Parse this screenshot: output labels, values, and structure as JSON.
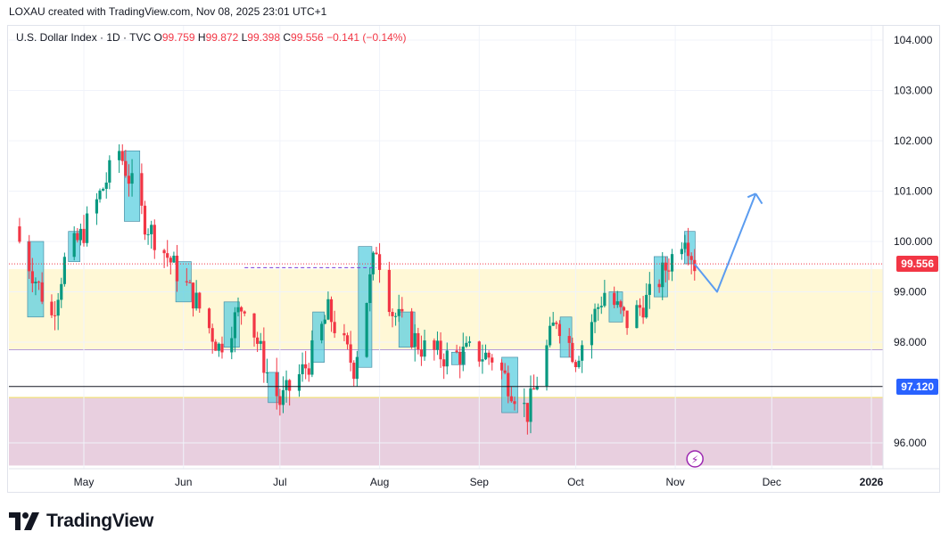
{
  "header": {
    "attribution": "LOXAU created with TradingView.com, Nov 08, 2025 23:01 UTC+1"
  },
  "legend": {
    "symbol": "U.S. Dollar Index · 1D · TVC",
    "o_label": "O",
    "o_value": "99.759",
    "h_label": "H",
    "h_value": "99.872",
    "l_label": "L",
    "l_value": "99.398",
    "c_label": "C",
    "c_value": "99.556",
    "change": "−0.141 (−0.14%)"
  },
  "footer": {
    "brand": "TradingView"
  },
  "colors": {
    "up": "#089981",
    "down": "#f23645",
    "box": "#5ccfe0",
    "yellow_zone": "#fff8d6",
    "pink_zone": "#e8cfdf",
    "projection": "#5b9cf0",
    "price_tag": "#f23645",
    "level_tag": "#2962ff"
  },
  "chart_data": {
    "type": "candlestick",
    "title": "U.S. Dollar Index · 1D · TVC",
    "ylim": [
      95.5,
      104.2
    ],
    "y_ticks": [
      "104.000",
      "103.000",
      "102.000",
      "101.000",
      "100.000",
      "99.000",
      "98.000",
      "96.000"
    ],
    "x_ticks": [
      "May",
      "Jun",
      "Jul",
      "Aug",
      "Sep",
      "Oct",
      "Nov",
      "Dec",
      "2026"
    ],
    "x_range_months": [
      "Apr",
      "Jan"
    ],
    "last_price": "99.556",
    "levels": [
      {
        "label": "97.120",
        "value": 97.12
      }
    ],
    "zones": [
      {
        "name": "supply-demand-zone",
        "from": 97.85,
        "to": 99.45
      },
      {
        "name": "lower-zone",
        "from": 95.55,
        "to": 96.9
      }
    ],
    "projection": [
      {
        "date": "2025-11-07",
        "value": 99.55
      },
      {
        "date": "2025-11-14",
        "value": 99.0
      },
      {
        "date": "2025-11-26",
        "value": 100.95
      },
      {
        "date": "2025-11-28",
        "value": 100.75
      }
    ],
    "closes": [
      {
        "date": "2025-04-11",
        "value": 100.0
      },
      {
        "date": "2025-04-21",
        "value": 98.5
      },
      {
        "date": "2025-04-25",
        "value": 99.6
      },
      {
        "date": "2025-05-01",
        "value": 100.2
      },
      {
        "date": "2025-05-12",
        "value": 101.8
      },
      {
        "date": "2025-05-20",
        "value": 100.4
      },
      {
        "date": "2025-05-28",
        "value": 99.6
      },
      {
        "date": "2025-06-05",
        "value": 98.8
      },
      {
        "date": "2025-06-12",
        "value": 97.9
      },
      {
        "date": "2025-06-20",
        "value": 98.8
      },
      {
        "date": "2025-06-27",
        "value": 97.4
      },
      {
        "date": "2025-07-01",
        "value": 96.8
      },
      {
        "date": "2025-07-10",
        "value": 97.6
      },
      {
        "date": "2025-07-16",
        "value": 98.6
      },
      {
        "date": "2025-07-24",
        "value": 97.5
      },
      {
        "date": "2025-07-31",
        "value": 99.9
      },
      {
        "date": "2025-08-05",
        "value": 98.6
      },
      {
        "date": "2025-08-14",
        "value": 97.9
      },
      {
        "date": "2025-08-22",
        "value": 97.7
      },
      {
        "date": "2025-08-29",
        "value": 97.8
      },
      {
        "date": "2025-09-05",
        "value": 97.7
      },
      {
        "date": "2025-09-16",
        "value": 96.6
      },
      {
        "date": "2025-09-25",
        "value": 98.5
      },
      {
        "date": "2025-10-01",
        "value": 97.7
      },
      {
        "date": "2025-10-10",
        "value": 99.0
      },
      {
        "date": "2025-10-17",
        "value": 98.4
      },
      {
        "date": "2025-10-24",
        "value": 98.9
      },
      {
        "date": "2025-10-31",
        "value": 99.7
      },
      {
        "date": "2025-11-04",
        "value": 100.2
      },
      {
        "date": "2025-11-07",
        "value": 99.556
      }
    ]
  }
}
